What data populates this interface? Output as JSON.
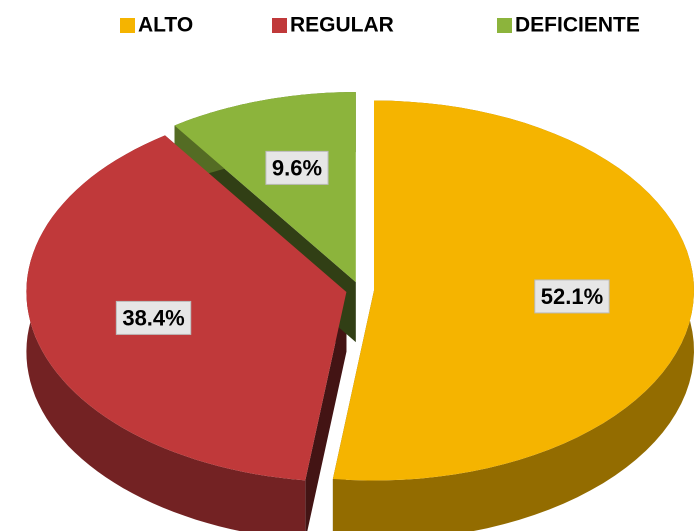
{
  "chart_data": {
    "type": "pie",
    "categories": [
      "ALTO",
      "REGULAR",
      "DEFICIENTE"
    ],
    "values": [
      52.1,
      38.4,
      9.6
    ],
    "value_labels": [
      "52.1%",
      "38.4%",
      "9.6%"
    ],
    "colors": [
      "#f5b400",
      "#c0393a",
      "#8cb43c"
    ],
    "legend": "top"
  }
}
